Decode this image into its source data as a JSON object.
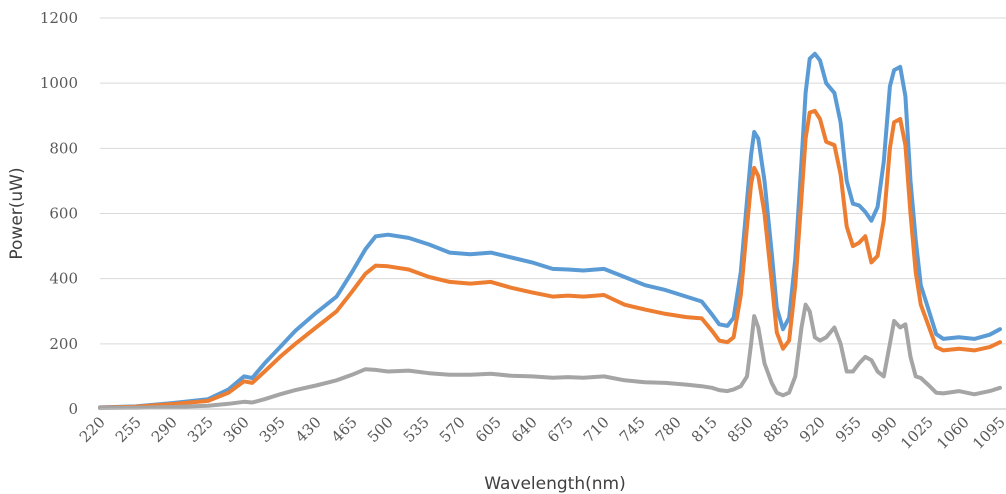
{
  "chart_data": {
    "type": "line",
    "title": "",
    "xlabel": "Wavelength(nm)",
    "ylabel": "Power(uW)",
    "xlim": [
      220,
      1095
    ],
    "ylim": [
      0,
      1200
    ],
    "yticks": [
      0,
      200,
      400,
      600,
      800,
      1000,
      1200
    ],
    "xticks": [
      220,
      255,
      290,
      325,
      360,
      395,
      430,
      465,
      500,
      535,
      570,
      605,
      640,
      675,
      710,
      745,
      780,
      815,
      850,
      885,
      920,
      955,
      990,
      1025,
      1060,
      1095
    ],
    "grid": "horizontal",
    "legend": "none",
    "series": [
      {
        "color": "#5b9bd5",
        "points": [
          [
            220,
            5
          ],
          [
            255,
            8
          ],
          [
            290,
            18
          ],
          [
            325,
            30
          ],
          [
            345,
            60
          ],
          [
            360,
            100
          ],
          [
            368,
            95
          ],
          [
            380,
            140
          ],
          [
            395,
            190
          ],
          [
            410,
            240
          ],
          [
            430,
            295
          ],
          [
            450,
            345
          ],
          [
            465,
            420
          ],
          [
            478,
            490
          ],
          [
            488,
            530
          ],
          [
            500,
            535
          ],
          [
            520,
            525
          ],
          [
            540,
            505
          ],
          [
            560,
            480
          ],
          [
            580,
            475
          ],
          [
            600,
            480
          ],
          [
            620,
            465
          ],
          [
            640,
            450
          ],
          [
            660,
            430
          ],
          [
            675,
            428
          ],
          [
            690,
            425
          ],
          [
            710,
            430
          ],
          [
            730,
            405
          ],
          [
            750,
            380
          ],
          [
            770,
            365
          ],
          [
            790,
            345
          ],
          [
            805,
            330
          ],
          [
            815,
            290
          ],
          [
            822,
            260
          ],
          [
            830,
            255
          ],
          [
            836,
            280
          ],
          [
            843,
            420
          ],
          [
            849,
            640
          ],
          [
            853,
            780
          ],
          [
            856,
            850
          ],
          [
            860,
            830
          ],
          [
            866,
            700
          ],
          [
            873,
            480
          ],
          [
            878,
            310
          ],
          [
            884,
            245
          ],
          [
            890,
            280
          ],
          [
            896,
            460
          ],
          [
            902,
            760
          ],
          [
            906,
            970
          ],
          [
            910,
            1075
          ],
          [
            915,
            1090
          ],
          [
            920,
            1070
          ],
          [
            926,
            1000
          ],
          [
            934,
            970
          ],
          [
            940,
            880
          ],
          [
            946,
            700
          ],
          [
            952,
            630
          ],
          [
            958,
            625
          ],
          [
            964,
            605
          ],
          [
            970,
            578
          ],
          [
            976,
            620
          ],
          [
            982,
            760
          ],
          [
            988,
            990
          ],
          [
            992,
            1040
          ],
          [
            998,
            1050
          ],
          [
            1003,
            960
          ],
          [
            1008,
            700
          ],
          [
            1013,
            520
          ],
          [
            1018,
            380
          ],
          [
            1025,
            310
          ],
          [
            1033,
            230
          ],
          [
            1040,
            215
          ],
          [
            1055,
            220
          ],
          [
            1070,
            215
          ],
          [
            1085,
            228
          ],
          [
            1095,
            245
          ]
        ]
      },
      {
        "color": "#ed7d31",
        "points": [
          [
            220,
            4
          ],
          [
            255,
            7
          ],
          [
            290,
            15
          ],
          [
            325,
            25
          ],
          [
            345,
            50
          ],
          [
            360,
            85
          ],
          [
            368,
            80
          ],
          [
            380,
            115
          ],
          [
            395,
            160
          ],
          [
            410,
            200
          ],
          [
            430,
            250
          ],
          [
            450,
            300
          ],
          [
            465,
            360
          ],
          [
            478,
            415
          ],
          [
            488,
            440
          ],
          [
            500,
            438
          ],
          [
            520,
            428
          ],
          [
            540,
            405
          ],
          [
            560,
            390
          ],
          [
            580,
            385
          ],
          [
            600,
            390
          ],
          [
            620,
            372
          ],
          [
            640,
            358
          ],
          [
            660,
            345
          ],
          [
            675,
            348
          ],
          [
            690,
            345
          ],
          [
            710,
            350
          ],
          [
            730,
            320
          ],
          [
            750,
            305
          ],
          [
            770,
            292
          ],
          [
            790,
            282
          ],
          [
            805,
            278
          ],
          [
            815,
            240
          ],
          [
            822,
            210
          ],
          [
            830,
            205
          ],
          [
            836,
            220
          ],
          [
            843,
            350
          ],
          [
            849,
            560
          ],
          [
            853,
            690
          ],
          [
            856,
            740
          ],
          [
            860,
            715
          ],
          [
            866,
            600
          ],
          [
            873,
            390
          ],
          [
            878,
            235
          ],
          [
            884,
            185
          ],
          [
            890,
            210
          ],
          [
            896,
            380
          ],
          [
            902,
            650
          ],
          [
            906,
            830
          ],
          [
            910,
            910
          ],
          [
            915,
            915
          ],
          [
            920,
            890
          ],
          [
            926,
            820
          ],
          [
            934,
            810
          ],
          [
            940,
            720
          ],
          [
            946,
            560
          ],
          [
            952,
            500
          ],
          [
            958,
            510
          ],
          [
            964,
            530
          ],
          [
            970,
            450
          ],
          [
            976,
            470
          ],
          [
            982,
            580
          ],
          [
            988,
            800
          ],
          [
            992,
            880
          ],
          [
            998,
            890
          ],
          [
            1003,
            810
          ],
          [
            1008,
            600
          ],
          [
            1013,
            420
          ],
          [
            1018,
            320
          ],
          [
            1025,
            260
          ],
          [
            1033,
            190
          ],
          [
            1040,
            180
          ],
          [
            1055,
            185
          ],
          [
            1070,
            180
          ],
          [
            1085,
            190
          ],
          [
            1095,
            205
          ]
        ]
      },
      {
        "color": "#a5a5a5",
        "points": [
          [
            220,
            3
          ],
          [
            255,
            4
          ],
          [
            290,
            6
          ],
          [
            325,
            10
          ],
          [
            345,
            16
          ],
          [
            360,
            22
          ],
          [
            368,
            20
          ],
          [
            380,
            30
          ],
          [
            395,
            45
          ],
          [
            410,
            58
          ],
          [
            430,
            72
          ],
          [
            450,
            88
          ],
          [
            465,
            105
          ],
          [
            478,
            122
          ],
          [
            488,
            120
          ],
          [
            500,
            115
          ],
          [
            520,
            118
          ],
          [
            540,
            110
          ],
          [
            560,
            105
          ],
          [
            580,
            105
          ],
          [
            600,
            108
          ],
          [
            620,
            102
          ],
          [
            640,
            100
          ],
          [
            660,
            96
          ],
          [
            675,
            98
          ],
          [
            690,
            96
          ],
          [
            710,
            100
          ],
          [
            730,
            88
          ],
          [
            750,
            82
          ],
          [
            770,
            80
          ],
          [
            790,
            75
          ],
          [
            805,
            70
          ],
          [
            815,
            65
          ],
          [
            822,
            58
          ],
          [
            830,
            55
          ],
          [
            836,
            60
          ],
          [
            843,
            70
          ],
          [
            849,
            100
          ],
          [
            853,
            200
          ],
          [
            856,
            285
          ],
          [
            860,
            250
          ],
          [
            866,
            140
          ],
          [
            873,
            80
          ],
          [
            878,
            50
          ],
          [
            884,
            42
          ],
          [
            890,
            50
          ],
          [
            896,
            100
          ],
          [
            902,
            250
          ],
          [
            906,
            320
          ],
          [
            910,
            300
          ],
          [
            915,
            220
          ],
          [
            920,
            210
          ],
          [
            926,
            220
          ],
          [
            934,
            250
          ],
          [
            940,
            200
          ],
          [
            946,
            115
          ],
          [
            952,
            115
          ],
          [
            958,
            140
          ],
          [
            964,
            160
          ],
          [
            970,
            150
          ],
          [
            976,
            115
          ],
          [
            982,
            100
          ],
          [
            988,
            200
          ],
          [
            992,
            270
          ],
          [
            998,
            250
          ],
          [
            1003,
            260
          ],
          [
            1008,
            160
          ],
          [
            1013,
            100
          ],
          [
            1018,
            95
          ],
          [
            1025,
            75
          ],
          [
            1033,
            50
          ],
          [
            1040,
            48
          ],
          [
            1055,
            55
          ],
          [
            1070,
            45
          ],
          [
            1085,
            55
          ],
          [
            1095,
            65
          ]
        ]
      }
    ]
  }
}
